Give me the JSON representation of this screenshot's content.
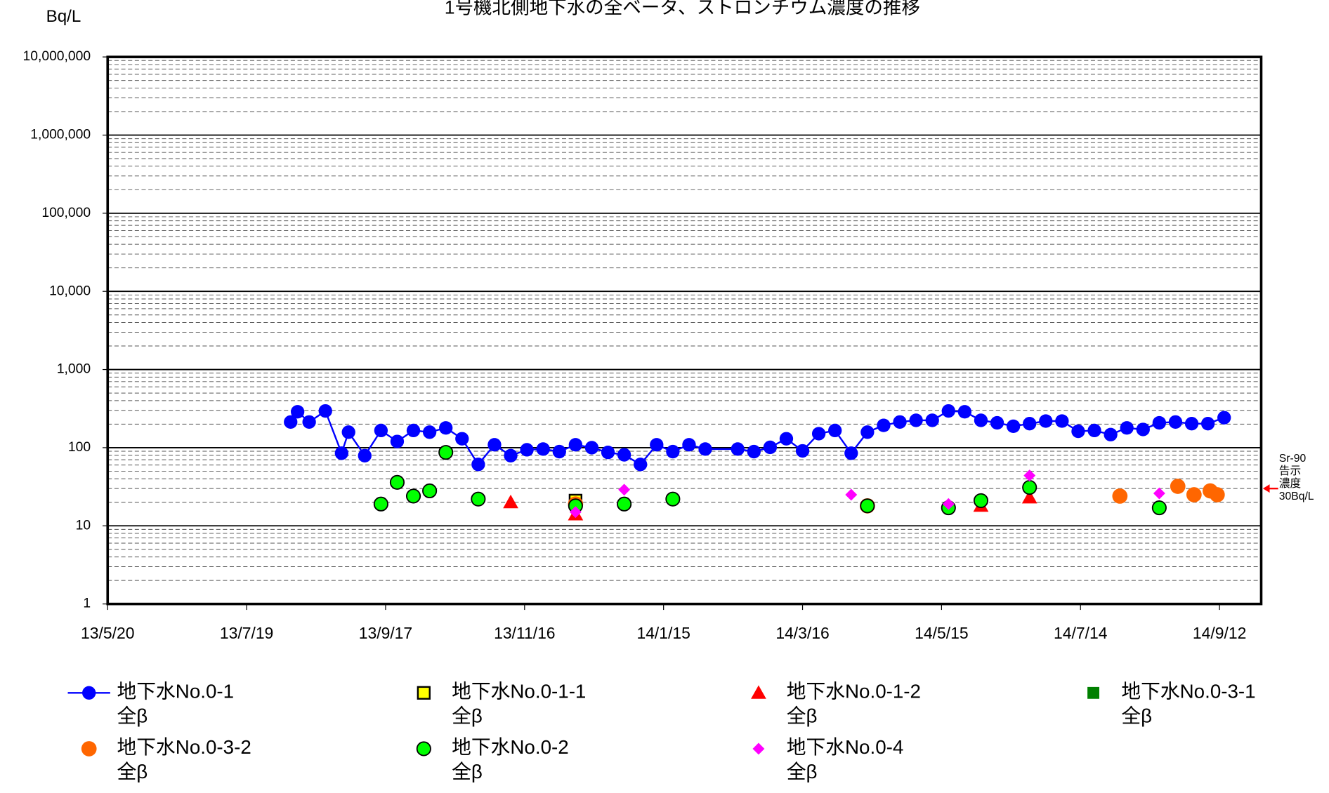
{
  "chart_data": {
    "type": "scatter",
    "title": "1号機北側地下水の全ベータ、ストロンチウム濃度の推移",
    "y_label": "Bq/L",
    "log_scale": true,
    "grid": true,
    "xlim": [
      "2013-05-20",
      "2014-09-30"
    ],
    "xticks": [
      {
        "value": "2013-05-20",
        "label": "13/5/20"
      },
      {
        "value": "2013-07-19",
        "label": "13/7/19"
      },
      {
        "value": "2013-09-17",
        "label": "13/9/17"
      },
      {
        "value": "2013-11-16",
        "label": "13/11/16"
      },
      {
        "value": "2014-01-15",
        "label": "14/1/15"
      },
      {
        "value": "2014-03-16",
        "label": "14/3/16"
      },
      {
        "value": "2014-05-15",
        "label": "14/5/15"
      },
      {
        "value": "2014-07-14",
        "label": "14/7/14"
      },
      {
        "value": "2014-09-12",
        "label": "14/9/12"
      }
    ],
    "ylim": [
      1,
      10000000
    ],
    "yticks": [
      1,
      10,
      100,
      {
        "value": 1000,
        "label": "1,000"
      },
      {
        "value": 10000,
        "label": "10,000"
      },
      {
        "value": 100000,
        "label": "100,000"
      },
      {
        "value": 1000000,
        "label": "1,000,000"
      },
      {
        "value": 10000000,
        "label": "10,000,000"
      }
    ],
    "annotation": {
      "text": "Sr-90\n告示\n濃度\n30Bq/L",
      "value": 30,
      "color": "#ff0000"
    },
    "series": [
      {
        "name": "地下水No.0-1\n全β",
        "color": "#0000ff",
        "marker": "circle-line",
        "x": [
          "2013-08-07",
          "2013-08-10",
          "2013-08-15",
          "2013-08-22",
          "2013-08-29",
          "2013-09-01",
          "2013-09-08",
          "2013-09-15",
          "2013-09-22",
          "2013-09-29",
          "2013-10-06",
          "2013-10-13",
          "2013-10-20",
          "2013-10-27",
          "2013-11-03",
          "2013-11-10",
          "2013-11-17",
          "2013-11-24",
          "2013-12-01",
          "2013-12-08",
          "2013-12-15",
          "2013-12-22",
          "2013-12-29",
          "2014-01-05",
          "2014-01-12",
          "2014-01-19",
          "2014-01-26",
          "2014-02-02",
          "2014-02-16",
          "2014-02-23",
          "2014-03-02",
          "2014-03-09",
          "2014-03-16",
          "2014-03-23",
          "2014-03-30",
          "2014-04-06",
          "2014-04-13",
          "2014-04-20",
          "2014-04-27",
          "2014-05-04",
          "2014-05-11",
          "2014-05-18",
          "2014-05-25",
          "2014-06-01",
          "2014-06-08",
          "2014-06-15",
          "2014-06-22",
          "2014-06-29",
          "2014-07-06",
          "2014-07-13",
          "2014-07-20",
          "2014-07-27",
          "2014-08-03",
          "2014-08-10",
          "2014-08-17",
          "2014-08-24",
          "2014-08-31",
          "2014-09-07",
          "2014-09-14"
        ],
        "values": [
          213,
          288,
          213,
          295,
          85,
          158,
          79,
          166,
          120,
          166,
          158,
          179,
          130,
          61,
          109,
          79,
          94,
          96,
          89,
          109,
          100,
          87,
          81,
          61,
          109,
          89,
          109,
          96,
          96,
          89,
          101,
          130,
          91,
          151,
          166,
          85,
          158,
          193,
          213,
          224,
          224,
          295,
          288,
          224,
          208,
          188,
          203,
          219,
          219,
          162,
          166,
          147,
          179,
          171,
          208,
          213,
          203,
          203,
          242
        ]
      },
      {
        "name": "地下水No.0-1-1\n全β",
        "color": "#ffff00",
        "marker": "square",
        "x": [
          "2013-12-08"
        ],
        "values": [
          21
        ]
      },
      {
        "name": "地下水No.0-1-2\n全β",
        "color": "#ff0000",
        "marker": "triangle",
        "x": [
          "2013-11-10",
          "2013-12-08",
          "2014-06-01",
          "2014-06-22"
        ],
        "values": [
          20,
          14,
          18,
          23
        ]
      },
      {
        "name": "地下水No.0-3-1\n全β",
        "color": "#008000",
        "marker": "square-solid",
        "x": [],
        "values": []
      },
      {
        "name": "地下水No.0-3-2\n全β",
        "color": "#ff6600",
        "marker": "circle-solid",
        "x": [
          "2013-12-08",
          "2014-04-13",
          "2014-07-31",
          "2014-08-25",
          "2014-09-01",
          "2014-09-08",
          "2014-09-11"
        ],
        "values": [
          19,
          18,
          24,
          32,
          25,
          28,
          25
        ]
      },
      {
        "name": "地下水No.0-2\n全β",
        "color": "#00ff00",
        "marker": "circle",
        "x": [
          "2013-09-15",
          "2013-09-22",
          "2013-09-29",
          "2013-10-06",
          "2013-10-13",
          "2013-10-27",
          "2013-12-08",
          "2013-12-29",
          "2014-01-19",
          "2014-04-13",
          "2014-05-18",
          "2014-06-01",
          "2014-06-22",
          "2014-08-17"
        ],
        "values": [
          19,
          36,
          24,
          28,
          87,
          22,
          18,
          19,
          22,
          18,
          17,
          21,
          31,
          17
        ]
      },
      {
        "name": "地下水No.0-4\n全β",
        "color": "#ff00ff",
        "marker": "diamond",
        "x": [
          "2013-12-08",
          "2013-12-29",
          "2014-04-06",
          "2014-05-18",
          "2014-06-22",
          "2014-08-17"
        ],
        "values": [
          15,
          29,
          25,
          19,
          44,
          26
        ]
      }
    ]
  }
}
